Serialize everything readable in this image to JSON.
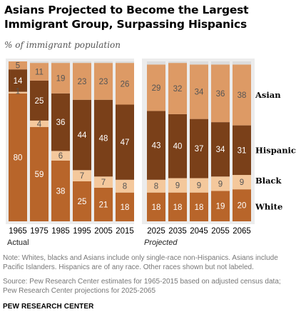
{
  "title": "Asians Projected to Become the Largest Immigrant Group, Surpassing Hispanics",
  "subtitle": "% of immigrant population",
  "note": "Note: Whites, blacks and Asians include only single-race non-Hispanics. Asians include Pacific Islanders. Hispanics are of any race. Other races shown but not labeled.",
  "source": "Source: Pew Research Center estimates for 1965-2015 based on adjusted census data; Pew Research Center projections for 2025-2065",
  "org": "PEW RESEARCH CENTER",
  "chart_data": {
    "type": "bar",
    "stacked": true,
    "ylim": [
      0,
      100
    ],
    "groups": [
      {
        "label": "Actual",
        "categories": [
          "1965",
          "1975",
          "1985",
          "1995",
          "2005",
          "2015"
        ]
      },
      {
        "label": "Projected",
        "categories": [
          "2025",
          "2035",
          "2045",
          "2055",
          "2065"
        ]
      }
    ],
    "categories": [
      "1965",
      "1975",
      "1985",
      "1995",
      "2005",
      "2015",
      "2025",
      "2035",
      "2045",
      "2055",
      "2065"
    ],
    "series": [
      {
        "name": "White",
        "values": [
          80,
          59,
          38,
          25,
          21,
          18,
          18,
          18,
          18,
          19,
          20
        ]
      },
      {
        "name": "Black",
        "values": [
          1,
          4,
          6,
          7,
          7,
          8,
          8,
          9,
          9,
          9,
          9
        ]
      },
      {
        "name": "Hispanic",
        "values": [
          14,
          25,
          36,
          44,
          48,
          47,
          43,
          40,
          37,
          34,
          31
        ]
      },
      {
        "name": "Asian",
        "values": [
          5,
          11,
          19,
          23,
          23,
          26,
          29,
          32,
          34,
          36,
          38
        ]
      }
    ],
    "colors": {
      "White": "#b8652a",
      "Black": "#f4c89c",
      "Hispanic": "#7a4019",
      "Asian": "#dd9a65",
      "Other": "#dcdcdc",
      "panel": "#ececec",
      "label_dark": "#ffffff",
      "label_light": "#555555"
    }
  }
}
